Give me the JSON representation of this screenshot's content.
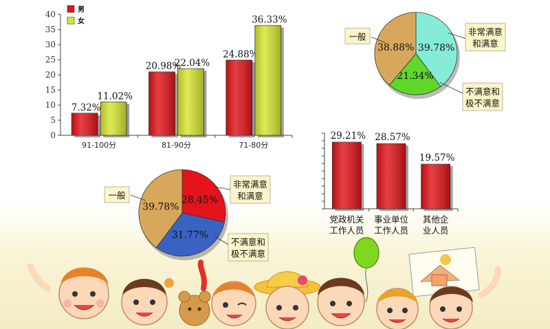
{
  "chart_data": [
    {
      "type": "bar",
      "categories": [
        "91-100分",
        "81-90分",
        "71-80分"
      ],
      "series": [
        {
          "name": "男",
          "values": [
            7.32,
            20.98,
            24.88
          ],
          "color": "#e0141a"
        },
        {
          "name": "女",
          "values": [
            11.02,
            22.04,
            36.33
          ],
          "color": "#d6e532"
        }
      ],
      "data_labels": [
        [
          "7.32%",
          "20.98%",
          "24.88%"
        ],
        [
          "11.02%",
          "22.04%",
          "36.33%"
        ]
      ],
      "ylim": [
        0,
        40
      ],
      "yticks": [
        0,
        5,
        10,
        15,
        20,
        25,
        30,
        35,
        40
      ],
      "legend": "top-left"
    },
    {
      "type": "pie",
      "slices": [
        {
          "label": "非常满意和满意",
          "label_lines": [
            "非常满意",
            "和满意"
          ],
          "value": 39.78,
          "value_label": "39.78%",
          "color": "#86ecd8"
        },
        {
          "label": "不满意和极不满意",
          "label_lines": [
            "不满意和",
            "极不满意"
          ],
          "value": 21.34,
          "value_label": "21.34%",
          "color": "#5fd829"
        },
        {
          "label": "一般",
          "label_lines": [
            "一般"
          ],
          "value": 38.88,
          "value_label": "38.88%",
          "color": "#d7a85c"
        }
      ]
    },
    {
      "type": "pie",
      "slices": [
        {
          "label": "非常满意和满意",
          "label_lines": [
            "非常满意",
            "和满意"
          ],
          "value": 28.45,
          "value_label": "28.45%",
          "color": "#e5141c"
        },
        {
          "label": "不满意和极不满意",
          "label_lines": [
            "不满意和",
            "极不满意"
          ],
          "value": 31.77,
          "value_label": "31.77%",
          "color": "#3a62c2"
        },
        {
          "label": "一般",
          "label_lines": [
            "一般"
          ],
          "value": 39.78,
          "value_label": "39.78%",
          "color": "#d7a85c"
        }
      ]
    },
    {
      "type": "bar",
      "categories": [
        "党政机关工作人员",
        "事业单位工作人员",
        "其他企业人员"
      ],
      "category_lines": [
        [
          "党政机关",
          "工作人员"
        ],
        [
          "事业单位",
          "工作人员"
        ],
        [
          "其他企",
          "业人员"
        ]
      ],
      "values": [
        29.21,
        28.57,
        19.57
      ],
      "data_labels": [
        "29.21%",
        "28.57%",
        "19.57%"
      ],
      "color": "#e0141a"
    }
  ]
}
